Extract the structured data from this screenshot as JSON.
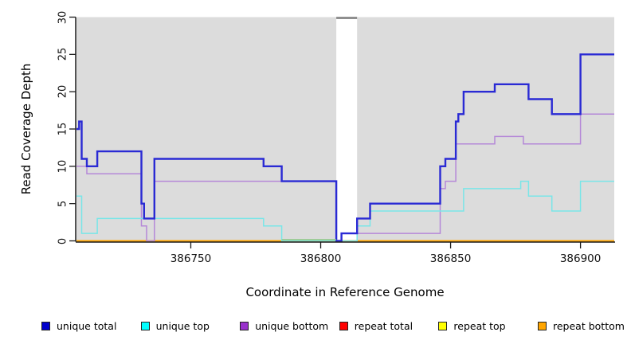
{
  "figure": {
    "y_axis_title": "Read Coverage Depth",
    "x_axis_title": "Coordinate in Reference Genome",
    "plot_background": "#dcdcdc",
    "gap_band_color": "#ffffff",
    "gap_cap_color": "#8f8f8f",
    "axis_color": "#1a1a1a"
  },
  "chart_data": {
    "type": "line",
    "subtype": "step",
    "title": "",
    "xlabel": "Coordinate in Reference Genome",
    "ylabel": "Read Coverage Depth",
    "xlim": [
      386706,
      386913
    ],
    "ylim": [
      0,
      30
    ],
    "x_ticks": [
      386750,
      386800,
      386850,
      386900
    ],
    "y_ticks": [
      0,
      5,
      10,
      15,
      20,
      25,
      30
    ],
    "grid": false,
    "legend_position": "bottom",
    "gap_region": {
      "x1": 386806,
      "x2": 386814,
      "note": "white band with gray cap at top, depth 30"
    },
    "series": [
      {
        "name": "repeat total",
        "color": "#ff0000",
        "legend_color": "#ff0000",
        "width": 1.5,
        "steps": [
          [
            386706,
            0
          ]
        ],
        "x_end": 386913
      },
      {
        "name": "repeat top",
        "color": "#ffff00",
        "legend_color": "#ffff00",
        "width": 1.5,
        "steps": [
          [
            386706,
            0
          ]
        ],
        "x_end": 386913
      },
      {
        "name": "repeat bottom",
        "color": "#ffa500",
        "legend_color": "#ffa500",
        "width": 2,
        "steps": [
          [
            386706,
            0
          ]
        ],
        "x_end": 386913
      },
      {
        "name": "unique bottom",
        "color": "#b588d8",
        "legend_color": "#9932cc",
        "width": 1.5,
        "steps": [
          [
            386706,
            10
          ],
          [
            386710,
            9
          ],
          [
            386731,
            2
          ],
          [
            386733,
            0
          ],
          [
            386736,
            8
          ],
          [
            386806,
            0
          ],
          [
            386808,
            1
          ],
          [
            386846,
            7
          ],
          [
            386848,
            8
          ],
          [
            386852,
            13
          ],
          [
            386867,
            14
          ],
          [
            386878,
            13
          ],
          [
            386900,
            17
          ]
        ],
        "x_end": 386913
      },
      {
        "name": "unique top",
        "color": "#79e6e8",
        "legend_color": "#00ffff",
        "width": 1.5,
        "steps": [
          [
            386706,
            6
          ],
          [
            386708,
            1
          ],
          [
            386714,
            3
          ],
          [
            386778,
            2
          ],
          [
            386785,
            0
          ],
          [
            386814,
            2
          ],
          [
            386819,
            4
          ],
          [
            386855,
            7
          ],
          [
            386877,
            8
          ],
          [
            386880,
            6
          ],
          [
            386889,
            4
          ],
          [
            386900,
            8
          ]
        ],
        "x_end": 386913
      },
      {
        "name": "unique total",
        "color": "#2a2ad4",
        "legend_color": "#0000cd",
        "width": 2.4,
        "steps": [
          [
            386706,
            15
          ],
          [
            386707,
            16
          ],
          [
            386708,
            11
          ],
          [
            386710,
            10
          ],
          [
            386714,
            12
          ],
          [
            386731,
            5
          ],
          [
            386732,
            3
          ],
          [
            386736,
            11
          ],
          [
            386778,
            10
          ],
          [
            386785,
            8
          ],
          [
            386806,
            0
          ],
          [
            386808,
            1
          ],
          [
            386814,
            3
          ],
          [
            386819,
            5
          ],
          [
            386846,
            10
          ],
          [
            386848,
            11
          ],
          [
            386852,
            16
          ],
          [
            386853,
            17
          ],
          [
            386855,
            20
          ],
          [
            386867,
            21
          ],
          [
            386880,
            19
          ],
          [
            386889,
            17
          ],
          [
            386900,
            25
          ]
        ],
        "x_end": 386913
      }
    ],
    "overlap_artifact": {
      "x1": 386785,
      "x2": 386806,
      "y": 0,
      "color": "#8cc98c",
      "note": "pale green segment where unique-top depth 0 overlaps repeat lines"
    }
  },
  "legend": {
    "items": [
      {
        "label": "unique total",
        "color": "#0000cd"
      },
      {
        "label": "unique top",
        "color": "#00ffff"
      },
      {
        "label": "unique bottom",
        "color": "#9932cc"
      },
      {
        "label": "repeat total",
        "color": "#ff0000"
      },
      {
        "label": "repeat top",
        "color": "#ffff00"
      },
      {
        "label": "repeat bottom",
        "color": "#ffa500"
      }
    ]
  }
}
